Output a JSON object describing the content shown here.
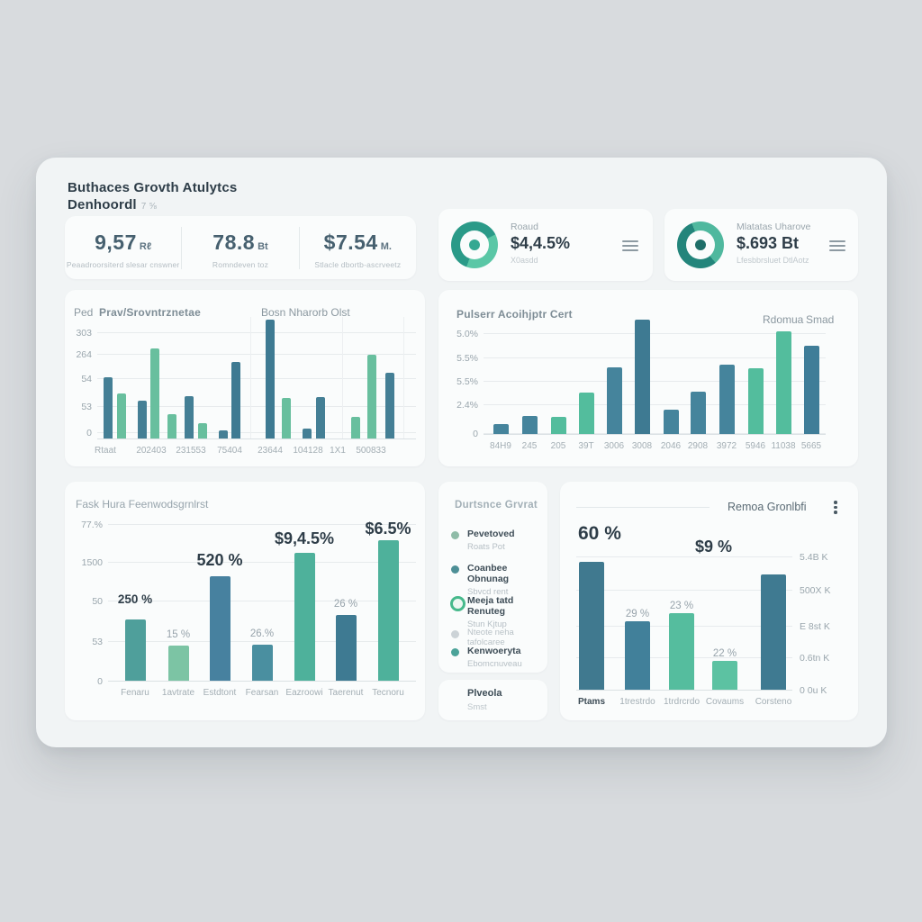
{
  "app": {
    "title_line1": "Buthaces Grovth Atulytcs",
    "title_line2": "Denhoordl",
    "title_badge": "7 ⅝"
  },
  "colors": {
    "page_bg": "#d8dbde",
    "dashboard_bg": "#f1f4f5",
    "card_bg": "#fafcfc",
    "text_dark": "#2e3d48",
    "text_gray": "#9aa6ad",
    "teal_dark": "#447f95",
    "green": "#68bf9e"
  },
  "kpis": [
    {
      "value": "9,57",
      "unit": "Rℓ",
      "caption": "Peaadroorsiterd slesar cnswner"
    },
    {
      "value": "78.8",
      "unit": "Bt",
      "caption": "Romndeven toz"
    },
    {
      "value": "$7.54",
      "unit": "M.",
      "caption": "Stlacle dbortb-ascrveetz"
    }
  ],
  "donut_cards": [
    {
      "label": "Roaud",
      "value": "$4,4.5%",
      "sub": "X0asdd",
      "menu_icon": "hamburger-menu-icon",
      "ring_main": "#2a9a88",
      "ring_accent": "#5ac7a6",
      "ring_split": 62,
      "ring_from": 200,
      "center_dot": "#35a892"
    },
    {
      "label": "Mlatatas Uharove",
      "value": "$.693 Bt",
      "sub": "Lfesbbrsluet DtlAotz",
      "menu_icon": "hamburger-menu-icon",
      "ring_main": "#23857b",
      "ring_accent": "#4fb89e",
      "ring_split": 55,
      "ring_from": 140,
      "center_dot": "#1e6e68"
    }
  ],
  "chart_data": {
    "chart1": {
      "type": "bar",
      "axis_hint": "Ped",
      "title": "Prav/Srovntrznetae",
      "right_label": "Bosn Nharorb Olst",
      "y_ticks": [
        "303",
        "264",
        "54",
        "53",
        "0"
      ],
      "x_labels": [
        "Rtaat",
        "202403",
        "231553",
        "75404",
        "23644",
        "104128",
        "1X1",
        "500833"
      ],
      "ylim": [
        0,
        340
      ],
      "grid": "horizontal",
      "bars": [
        {
          "v": 68,
          "c": "#447f95"
        },
        {
          "v": 50,
          "c": "#68bf9e"
        },
        {
          "v": 42,
          "c": "#447f95"
        },
        {
          "v": 100,
          "c": "#68bf9e"
        },
        {
          "v": 27,
          "c": "#68bf9e"
        },
        {
          "v": 47,
          "c": "#447f95"
        },
        {
          "v": 17,
          "c": "#68bf9e"
        },
        {
          "v": 9,
          "c": "#447f95"
        },
        {
          "v": 85,
          "c": "#3e7a92"
        },
        {
          "v": 132,
          "c": "#3e7a92"
        },
        {
          "v": 45,
          "c": "#68bf9e"
        },
        {
          "v": 11,
          "c": "#447f95"
        },
        {
          "v": 46,
          "c": "#447f95"
        },
        {
          "v": 24,
          "c": "#68bf9e"
        },
        {
          "v": 93,
          "c": "#68bf9e"
        },
        {
          "v": 73,
          "c": "#447f95"
        }
      ]
    },
    "chart2": {
      "type": "bar",
      "title": "Pulserr Acoihjptr Cert",
      "legend": [
        "Rdomua",
        "Smad"
      ],
      "y_ticks": [
        "5.0%",
        "5.5%",
        "5.5%",
        "2.4%",
        "0"
      ],
      "x_labels": [
        "84H9",
        "245",
        "205",
        "39T",
        "3006",
        "3008",
        "2046",
        "2908",
        "3972",
        "5946",
        "11038",
        "5665"
      ],
      "ylim": [
        0,
        5.6
      ],
      "grid": "horizontal",
      "bars": [
        {
          "v": 11,
          "c": "#45849c"
        },
        {
          "v": 20,
          "c": "#45849c"
        },
        {
          "v": 19,
          "c": "#53bd9d"
        },
        {
          "v": 46,
          "c": "#53bd9d"
        },
        {
          "v": 74,
          "c": "#45849c"
        },
        {
          "v": 127,
          "c": "#3e7a92"
        },
        {
          "v": 27,
          "c": "#45849c"
        },
        {
          "v": 47,
          "c": "#45849c"
        },
        {
          "v": 77,
          "c": "#45849c"
        },
        {
          "v": 73,
          "c": "#53bd9d"
        },
        {
          "v": 114,
          "c": "#53bd9d"
        },
        {
          "v": 98,
          "c": "#3f7d98"
        }
      ]
    },
    "chart3": {
      "type": "bar",
      "title": "Fask Hura Feenwodsgrnlrst",
      "y_ticks": [
        "77.%",
        "1500",
        "50",
        "53",
        "0"
      ],
      "x_labels": [
        "Fenaru",
        "1avtrate",
        "Estdtont",
        "Fearsan",
        "Eazroowi",
        "Taerenut",
        "Tecnoru"
      ],
      "grid": "horizontal",
      "bars": [
        {
          "v": 68,
          "c": "#4f9f9b",
          "label": "250 %",
          "ls": "mid"
        },
        {
          "v": 39,
          "c": "#7cc4a4",
          "label": "15 %",
          "ls": "gray"
        },
        {
          "v": 116,
          "c": "#47819f",
          "label": "520 %",
          "ls": "big"
        },
        {
          "v": 40,
          "c": "#4a8fa0",
          "label": "26.%",
          "ls": "gray"
        },
        {
          "v": 142,
          "c": "#4eb19b",
          "label": "$9,4.5%",
          "ls": "big"
        },
        {
          "v": 73,
          "c": "#3e7a92",
          "label": "26 %",
          "ls": "gray"
        },
        {
          "v": 156,
          "c": "#4eb19b",
          "label": "$6.5%",
          "ls": "big"
        }
      ]
    },
    "chart4": {
      "type": "bar",
      "title": "Remoa Gronlbfi",
      "menu_icon": "kebab-menu-icon",
      "big_left": "60 %",
      "big_right": "$9 %",
      "y_ticks_right": [
        "5.4B K",
        "500X K",
        "E 8st K",
        "0.6tn K",
        "0 0u K"
      ],
      "x_labels": [
        "Ptams",
        "1trestrdo",
        "1trdrcrdo",
        "Covaums",
        "Corsteno"
      ],
      "grid": "horizontal",
      "bars": [
        {
          "v": 142,
          "c": "#40798f"
        },
        {
          "v": 76,
          "c": "#41809a",
          "label": "29 %",
          "ls": "gray"
        },
        {
          "v": 85,
          "c": "#55bd9e",
          "label": "23 %",
          "ls": "gray"
        },
        {
          "v": 32,
          "c": "#5cc2a2",
          "label": "22 %",
          "ls": "gray"
        },
        {
          "v": 128,
          "c": "#3f7a91"
        }
      ]
    }
  },
  "legend_card": {
    "title": "Durtsnce Grvrat",
    "items": [
      {
        "label": "Pevetoved",
        "sub": "Roats Pot",
        "color": "#8fbca8",
        "ring": false,
        "muted": false
      },
      {
        "label": "Coanbee Obnunag",
        "sub": "Sbvcd rent",
        "color": "#4d8f96",
        "ring": false,
        "muted": false
      },
      {
        "label": "Meeja tatd Renuteg",
        "sub": "Stun Kjtup",
        "color": "#47b98c",
        "ring": true,
        "muted": false
      },
      {
        "label": "Nteote neha tafolcaree",
        "sub": "",
        "color": "#ccd3d7",
        "ring": false,
        "muted": true
      },
      {
        "label": "Kenwoeryta",
        "sub": "Ebomcnuveau",
        "color": "#4ba399",
        "ring": false,
        "muted": false
      }
    ]
  },
  "pivot_card": {
    "title": "Plveola",
    "sub": "Smst"
  }
}
